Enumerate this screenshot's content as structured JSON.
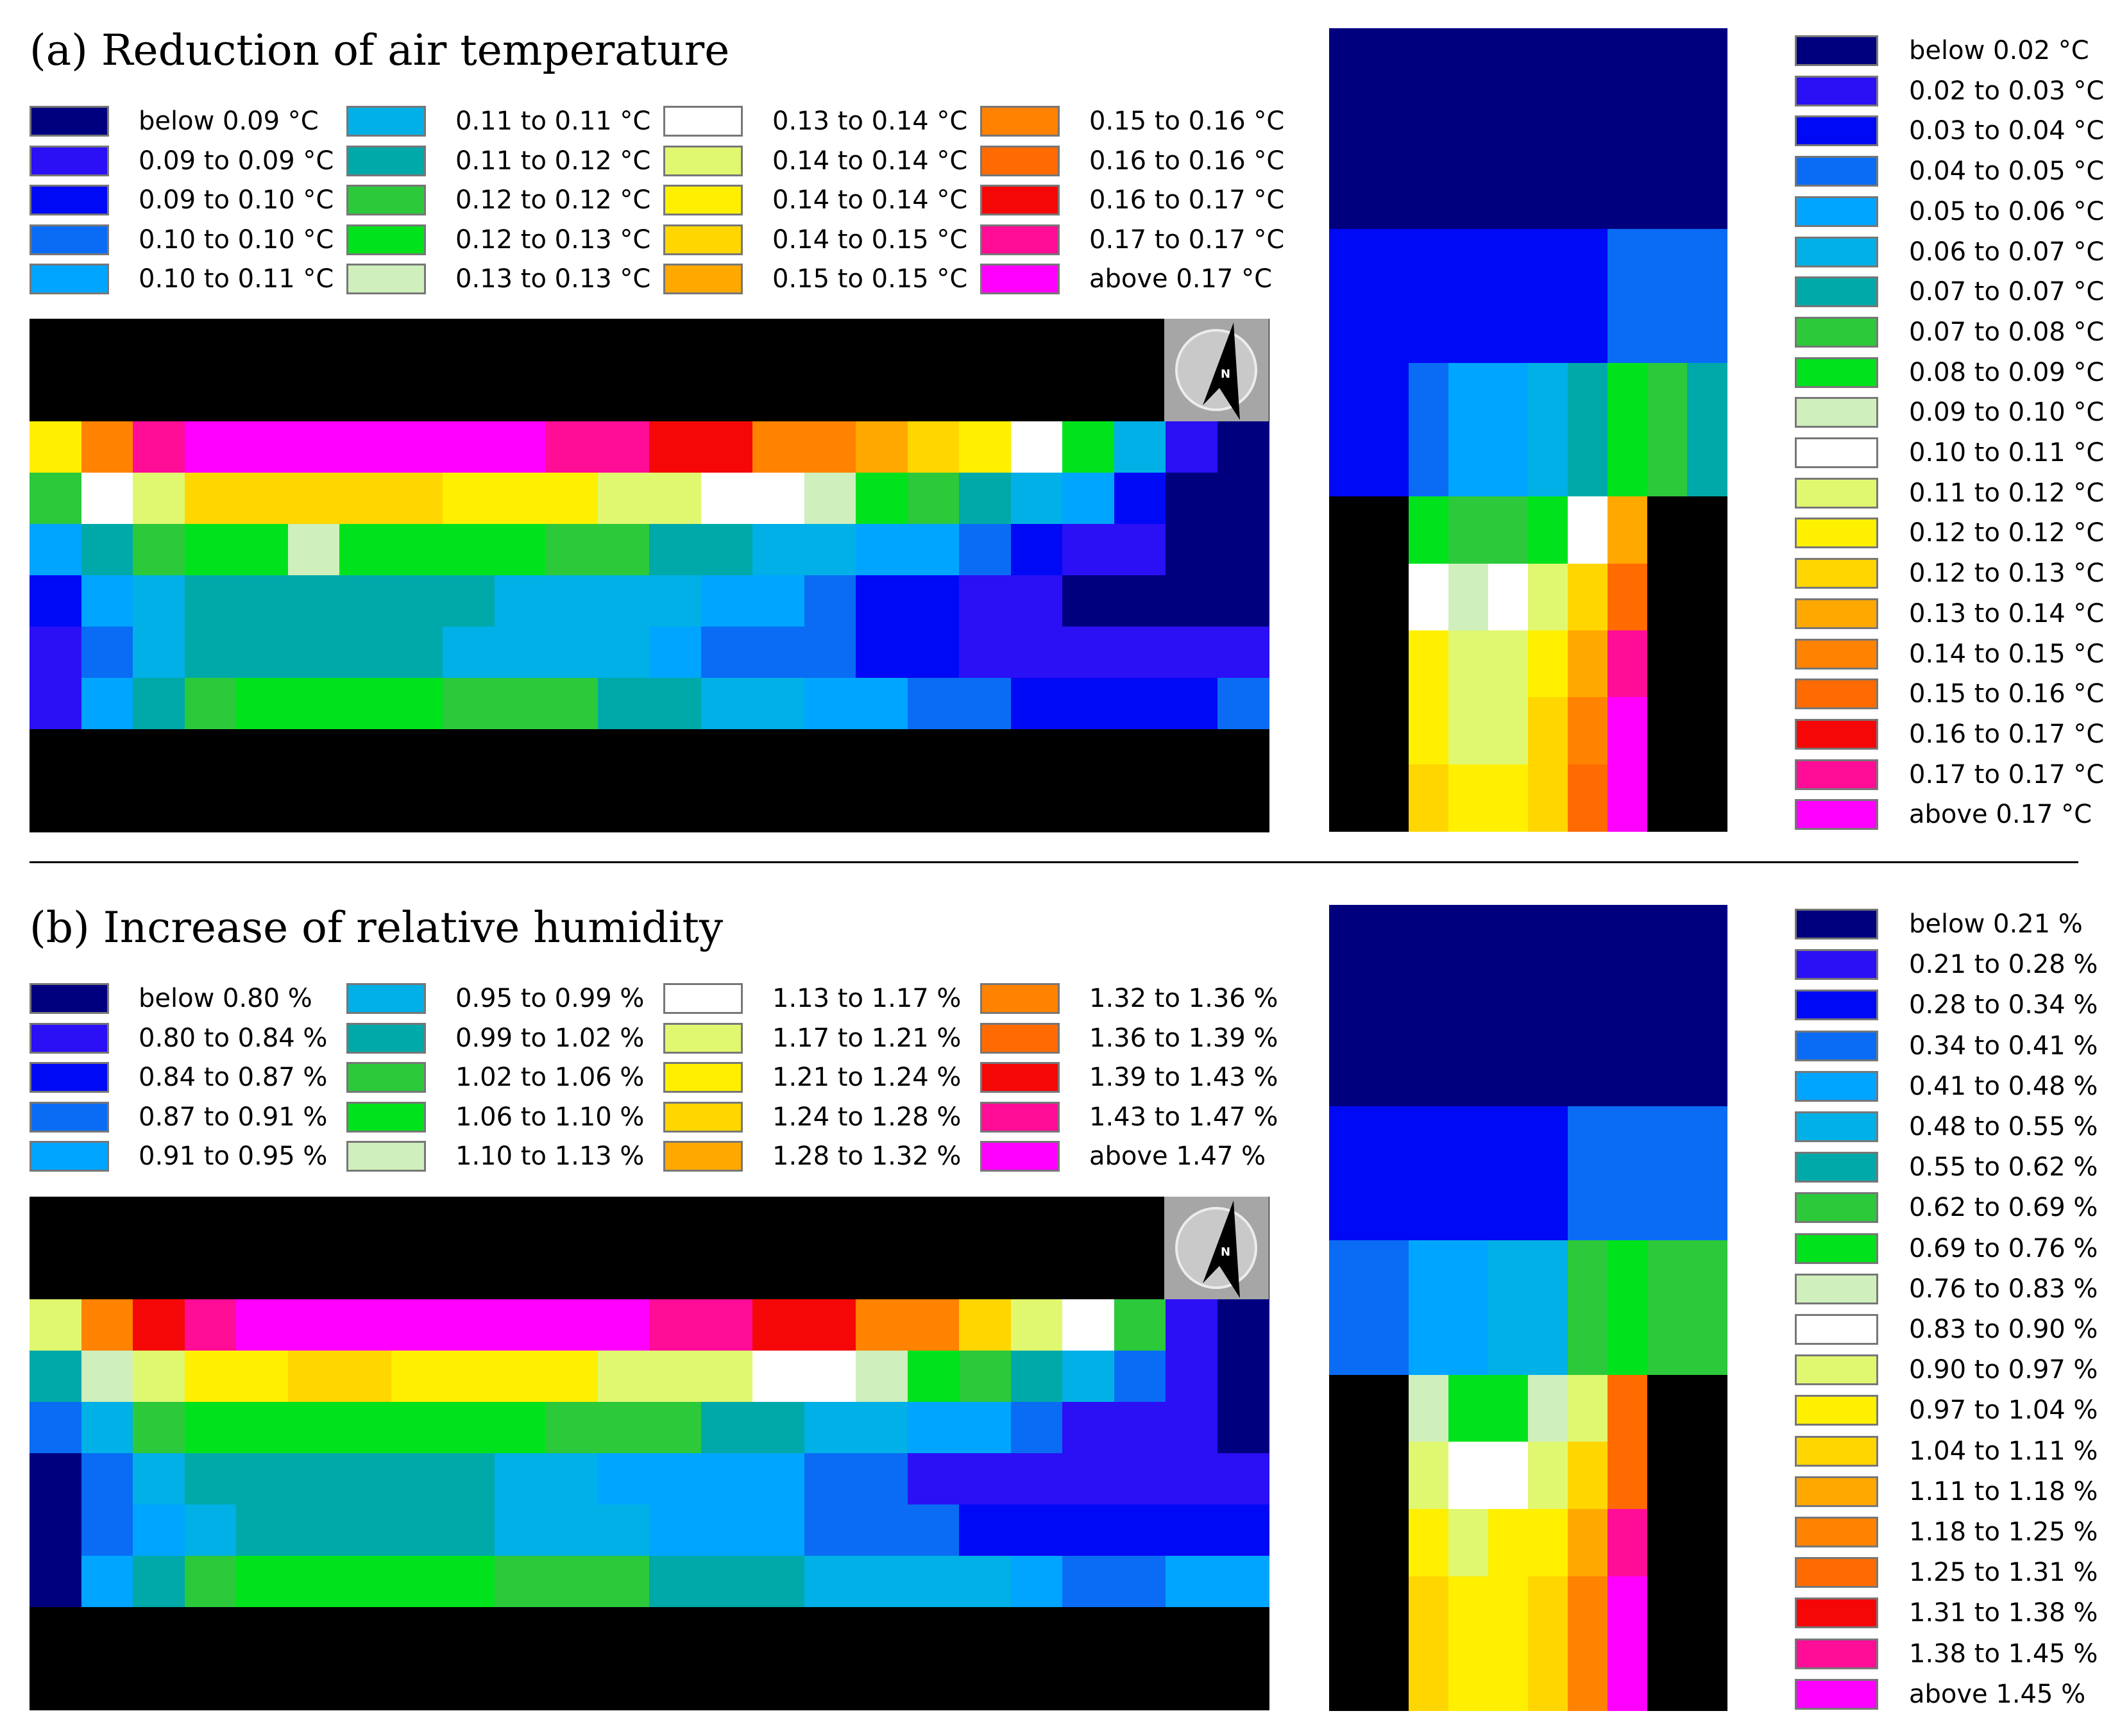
{
  "panel_a": {
    "title": "(a) Reduction of air temperature",
    "legend_main": [
      {
        "label": "below 0.09 °C",
        "color": "#00007f"
      },
      {
        "label": "0.09 to 0.09 °C",
        "color": "#2b0ff5"
      },
      {
        "label": "0.09 to 0.10 °C",
        "color": "#0009f5"
      },
      {
        "label": "0.10 to 0.10 °C",
        "color": "#0a6cf5"
      },
      {
        "label": "0.10 to 0.11 °C",
        "color": "#00a5ff"
      },
      {
        "label": "0.11 to 0.11 °C",
        "color": "#00b0e6"
      },
      {
        "label": "0.11 to 0.12 °C",
        "color": "#00a9a9"
      },
      {
        "label": "0.12 to 0.12 °C",
        "color": "#2cc93b"
      },
      {
        "label": "0.12 to 0.13 °C",
        "color": "#00e31c"
      },
      {
        "label": "0.13 to 0.13 °C",
        "color": "#cfefbc"
      },
      {
        "label": "0.13 to 0.14 °C",
        "color": "#ffffff"
      },
      {
        "label": "0.14 to 0.14 °C",
        "color": "#e0f870"
      },
      {
        "label": "0.14 to 0.14 °C",
        "color": "#fff000"
      },
      {
        "label": "0.14 to 0.15 °C",
        "color": "#ffd600"
      },
      {
        "label": "0.15 to 0.15 °C",
        "color": "#ffa800"
      },
      {
        "label": "0.15 to 0.16 °C",
        "color": "#ff8200"
      },
      {
        "label": "0.16 to 0.16 °C",
        "color": "#ff6b00"
      },
      {
        "label": "0.16 to 0.17 °C",
        "color": "#f50707"
      },
      {
        "label": "0.17 to 0.17 °C",
        "color": "#ff0c97"
      },
      {
        "label": "above 0.17 °C",
        "color": "#ff00ff"
      }
    ],
    "legend_side": [
      {
        "label": "below 0.02 °C",
        "color": "#00007f"
      },
      {
        "label": "0.02 to 0.03 °C",
        "color": "#2b0ff5"
      },
      {
        "label": "0.03 to 0.04 °C",
        "color": "#0009f5"
      },
      {
        "label": "0.04 to 0.05 °C",
        "color": "#0a6cf5"
      },
      {
        "label": "0.05 to 0.06 °C",
        "color": "#00a5ff"
      },
      {
        "label": "0.06 to 0.07 °C",
        "color": "#00b0e6"
      },
      {
        "label": "0.07 to 0.07 °C",
        "color": "#00a9a9"
      },
      {
        "label": "0.07 to 0.08 °C",
        "color": "#2cc93b"
      },
      {
        "label": "0.08 to 0.09 °C",
        "color": "#00e31c"
      },
      {
        "label": "0.09 to 0.10 °C",
        "color": "#cfefbc"
      },
      {
        "label": "0.10 to 0.11 °C",
        "color": "#ffffff"
      },
      {
        "label": "0.11 to 0.12 °C",
        "color": "#e0f870"
      },
      {
        "label": "0.12 to 0.12 °C",
        "color": "#fff000"
      },
      {
        "label": "0.12 to 0.13 °C",
        "color": "#ffd600"
      },
      {
        "label": "0.13 to 0.14 °C",
        "color": "#ffa800"
      },
      {
        "label": "0.14 to 0.15 °C",
        "color": "#ff8200"
      },
      {
        "label": "0.15 to 0.16 °C",
        "color": "#ff6b00"
      },
      {
        "label": "0.16 to 0.17 °C",
        "color": "#f50707"
      },
      {
        "label": "0.17 to 0.17 °C",
        "color": "#ff0c97"
      },
      {
        "label": "above 0.17 °C",
        "color": "#ff00ff"
      }
    ]
  },
  "panel_b": {
    "title": "(b) Increase of relative humidity",
    "legend_main": [
      {
        "label": "below 0.80 %",
        "color": "#00007f"
      },
      {
        "label": "0.80 to 0.84 %",
        "color": "#2b0ff5"
      },
      {
        "label": "0.84 to 0.87 %",
        "color": "#0009f5"
      },
      {
        "label": "0.87 to 0.91 %",
        "color": "#0a6cf5"
      },
      {
        "label": "0.91 to 0.95 %",
        "color": "#00a5ff"
      },
      {
        "label": "0.95 to 0.99 %",
        "color": "#00b0e6"
      },
      {
        "label": "0.99 to 1.02 %",
        "color": "#00a9a9"
      },
      {
        "label": "1.02 to 1.06 %",
        "color": "#2cc93b"
      },
      {
        "label": "1.06 to 1.10 %",
        "color": "#00e31c"
      },
      {
        "label": "1.10 to 1.13 %",
        "color": "#cfefbc"
      },
      {
        "label": "1.13 to 1.17 %",
        "color": "#ffffff"
      },
      {
        "label": "1.17 to 1.21 %",
        "color": "#e0f870"
      },
      {
        "label": "1.21 to 1.24 %",
        "color": "#fff000"
      },
      {
        "label": "1.24 to 1.28 %",
        "color": "#ffd600"
      },
      {
        "label": "1.28 to 1.32 %",
        "color": "#ffa800"
      },
      {
        "label": "1.32 to 1.36 %",
        "color": "#ff8200"
      },
      {
        "label": "1.36 to 1.39 %",
        "color": "#ff6b00"
      },
      {
        "label": "1.39 to 1.43 %",
        "color": "#f50707"
      },
      {
        "label": "1.43 to 1.47 %",
        "color": "#ff0c97"
      },
      {
        "label": "above 1.47 %",
        "color": "#ff00ff"
      }
    ],
    "legend_side": [
      {
        "label": "below 0.21 %",
        "color": "#00007f"
      },
      {
        "label": "0.21 to 0.28 %",
        "color": "#2b0ff5"
      },
      {
        "label": "0.28 to 0.34 %",
        "color": "#0009f5"
      },
      {
        "label": "0.34 to 0.41 %",
        "color": "#0a6cf5"
      },
      {
        "label": "0.41 to 0.48 %",
        "color": "#00a5ff"
      },
      {
        "label": "0.48 to 0.55 %",
        "color": "#00b0e6"
      },
      {
        "label": "0.55 to 0.62 %",
        "color": "#00a9a9"
      },
      {
        "label": "0.62 to 0.69 %",
        "color": "#2cc93b"
      },
      {
        "label": "0.69 to 0.76 %",
        "color": "#00e31c"
      },
      {
        "label": "0.76 to 0.83 %",
        "color": "#cfefbc"
      },
      {
        "label": "0.83 to 0.90 %",
        "color": "#ffffff"
      },
      {
        "label": "0.90 to 0.97 %",
        "color": "#e0f870"
      },
      {
        "label": "0.97 to 1.04 %",
        "color": "#fff000"
      },
      {
        "label": "1.04 to 1.11 %",
        "color": "#ffd600"
      },
      {
        "label": "1.11 to 1.18 %",
        "color": "#ffa800"
      },
      {
        "label": "1.18 to 1.25 %",
        "color": "#ff8200"
      },
      {
        "label": "1.25 to 1.31 %",
        "color": "#ff6b00"
      },
      {
        "label": "1.31 to 1.38 %",
        "color": "#f50707"
      },
      {
        "label": "1.38 to 1.45 %",
        "color": "#ff0c97"
      },
      {
        "label": "above 1.45 %",
        "color": "#ff00ff"
      }
    ]
  },
  "chart_data": [
    {
      "type": "heatmap",
      "title": "(a) Reduction of air temperature",
      "map": "street plan view",
      "note": "values are legend class indices 0-19 (0 = lowest class, 19 = highest class); -1 = background",
      "rows": [
        [
          -1,
          -1,
          -1,
          -1,
          -1,
          -1,
          -1,
          -1,
          -1,
          -1,
          -1,
          -1,
          -1,
          -1,
          -1,
          -1,
          -1,
          -1,
          -1,
          -1,
          -1,
          -1,
          -1,
          -1
        ],
        [
          -1,
          -1,
          -1,
          -1,
          -1,
          -1,
          -1,
          -1,
          -1,
          -1,
          -1,
          -1,
          -1,
          -1,
          -1,
          -1,
          -1,
          -1,
          -1,
          -1,
          -1,
          -1,
          -1,
          -1
        ],
        [
          12,
          15,
          18,
          19,
          19,
          19,
          19,
          19,
          19,
          19,
          18,
          18,
          17,
          17,
          15,
          15,
          14,
          13,
          12,
          10,
          8,
          5,
          1,
          0
        ],
        [
          7,
          10,
          11,
          13,
          13,
          13,
          13,
          13,
          12,
          12,
          12,
          11,
          11,
          10,
          10,
          9,
          8,
          7,
          6,
          5,
          4,
          2,
          0,
          0
        ],
        [
          4,
          6,
          7,
          8,
          8,
          9,
          8,
          8,
          8,
          8,
          7,
          7,
          6,
          6,
          5,
          5,
          4,
          4,
          3,
          2,
          1,
          1,
          0,
          0
        ],
        [
          2,
          4,
          5,
          6,
          6,
          6,
          6,
          6,
          6,
          5,
          5,
          5,
          5,
          4,
          4,
          3,
          2,
          2,
          1,
          1,
          0,
          0,
          0,
          0
        ],
        [
          1,
          3,
          5,
          6,
          6,
          6,
          6,
          6,
          5,
          5,
          5,
          5,
          4,
          3,
          3,
          3,
          2,
          2,
          1,
          1,
          1,
          1,
          1,
          1
        ],
        [
          1,
          4,
          6,
          7,
          8,
          8,
          8,
          8,
          7,
          7,
          7,
          6,
          6,
          5,
          5,
          4,
          4,
          3,
          3,
          2,
          2,
          2,
          2,
          3
        ],
        [
          -1,
          -1,
          -1,
          -1,
          -1,
          -1,
          -1,
          -1,
          -1,
          -1,
          -1,
          -1,
          -1,
          -1,
          -1,
          -1,
          -1,
          -1,
          -1,
          -1,
          -1,
          -1,
          -1,
          -1
        ],
        [
          -1,
          -1,
          -1,
          -1,
          -1,
          -1,
          -1,
          -1,
          -1,
          -1,
          -1,
          -1,
          -1,
          -1,
          -1,
          -1,
          -1,
          -1,
          -1,
          -1,
          -1,
          -1,
          -1,
          -1
        ]
      ]
    },
    {
      "type": "heatmap",
      "title": "(a) Reduction of air temperature — cross section",
      "note": "values are legend class indices 0-19; -1 = background",
      "rows": [
        [
          0,
          0,
          0,
          0,
          0,
          0,
          0,
          0,
          0,
          0
        ],
        [
          0,
          0,
          0,
          0,
          0,
          0,
          0,
          0,
          0,
          0
        ],
        [
          0,
          0,
          0,
          0,
          0,
          0,
          0,
          0,
          0,
          0
        ],
        [
          2,
          2,
          2,
          2,
          2,
          2,
          2,
          3,
          3,
          3
        ],
        [
          2,
          2,
          2,
          2,
          2,
          2,
          2,
          3,
          3,
          3
        ],
        [
          2,
          2,
          3,
          4,
          4,
          5,
          6,
          8,
          7,
          6
        ],
        [
          2,
          2,
          3,
          4,
          4,
          5,
          6,
          8,
          7,
          6
        ],
        [
          -1,
          -1,
          8,
          7,
          7,
          8,
          10,
          14,
          -1,
          -1
        ],
        [
          -1,
          -1,
          10,
          9,
          10,
          11,
          13,
          16,
          -1,
          -1
        ],
        [
          -1,
          -1,
          12,
          11,
          11,
          12,
          14,
          18,
          -1,
          -1
        ],
        [
          -1,
          -1,
          12,
          11,
          11,
          13,
          15,
          19,
          -1,
          -1
        ],
        [
          -1,
          -1,
          13,
          12,
          12,
          13,
          16,
          19,
          -1,
          -1
        ]
      ]
    },
    {
      "type": "heatmap",
      "title": "(b) Increase of relative humidity",
      "map": "street plan view",
      "note": "values are legend class indices 0-19; -1 = background",
      "rows": [
        [
          -1,
          -1,
          -1,
          -1,
          -1,
          -1,
          -1,
          -1,
          -1,
          -1,
          -1,
          -1,
          -1,
          -1,
          -1,
          -1,
          -1,
          -1,
          -1,
          -1,
          -1,
          -1,
          -1,
          -1
        ],
        [
          -1,
          -1,
          -1,
          -1,
          -1,
          -1,
          -1,
          -1,
          -1,
          -1,
          -1,
          -1,
          -1,
          -1,
          -1,
          -1,
          -1,
          -1,
          -1,
          -1,
          -1,
          -1,
          -1,
          -1
        ],
        [
          11,
          15,
          17,
          18,
          19,
          19,
          19,
          19,
          19,
          19,
          19,
          19,
          18,
          18,
          17,
          17,
          15,
          15,
          13,
          11,
          10,
          7,
          1,
          0
        ],
        [
          6,
          9,
          11,
          12,
          12,
          13,
          13,
          12,
          12,
          12,
          12,
          11,
          11,
          11,
          10,
          10,
          9,
          8,
          7,
          6,
          5,
          3,
          1,
          0
        ],
        [
          3,
          5,
          7,
          8,
          8,
          8,
          8,
          8,
          8,
          8,
          7,
          7,
          7,
          6,
          6,
          5,
          5,
          4,
          4,
          3,
          1,
          1,
          1,
          0
        ],
        [
          0,
          3,
          5,
          6,
          6,
          6,
          6,
          6,
          6,
          5,
          5,
          4,
          4,
          4,
          4,
          3,
          3,
          1,
          1,
          1,
          1,
          1,
          1,
          1
        ],
        [
          0,
          3,
          4,
          5,
          6,
          6,
          6,
          6,
          6,
          5,
          5,
          5,
          4,
          4,
          4,
          3,
          3,
          3,
          2,
          2,
          2,
          2,
          2,
          2
        ],
        [
          0,
          4,
          6,
          7,
          8,
          8,
          8,
          8,
          8,
          7,
          7,
          7,
          6,
          6,
          6,
          5,
          5,
          5,
          5,
          4,
          3,
          3,
          4,
          4
        ],
        [
          -1,
          -1,
          -1,
          -1,
          -1,
          -1,
          -1,
          -1,
          -1,
          -1,
          -1,
          -1,
          -1,
          -1,
          -1,
          -1,
          -1,
          -1,
          -1,
          -1,
          -1,
          -1,
          -1,
          -1
        ],
        [
          -1,
          -1,
          -1,
          -1,
          -1,
          -1,
          -1,
          -1,
          -1,
          -1,
          -1,
          -1,
          -1,
          -1,
          -1,
          -1,
          -1,
          -1,
          -1,
          -1,
          -1,
          -1,
          -1,
          -1
        ]
      ]
    },
    {
      "type": "heatmap",
      "title": "(b) Increase of relative humidity — cross section",
      "note": "values are legend class indices 0-19; -1 = background",
      "rows": [
        [
          0,
          0,
          0,
          0,
          0,
          0,
          0,
          0,
          0,
          0
        ],
        [
          0,
          0,
          0,
          0,
          0,
          0,
          0,
          0,
          0,
          0
        ],
        [
          0,
          0,
          0,
          0,
          0,
          0,
          0,
          0,
          0,
          0
        ],
        [
          2,
          2,
          2,
          2,
          2,
          2,
          3,
          3,
          3,
          3
        ],
        [
          2,
          2,
          2,
          2,
          2,
          2,
          3,
          3,
          3,
          3
        ],
        [
          3,
          3,
          4,
          4,
          5,
          5,
          7,
          8,
          7,
          7
        ],
        [
          3,
          3,
          4,
          4,
          5,
          5,
          7,
          8,
          7,
          7
        ],
        [
          -1,
          -1,
          9,
          8,
          8,
          9,
          11,
          16,
          -1,
          -1
        ],
        [
          -1,
          -1,
          11,
          10,
          10,
          11,
          13,
          16,
          -1,
          -1
        ],
        [
          -1,
          -1,
          12,
          11,
          12,
          12,
          14,
          18,
          -1,
          -1
        ],
        [
          -1,
          -1,
          13,
          12,
          12,
          13,
          15,
          19,
          -1,
          -1
        ],
        [
          -1,
          -1,
          13,
          12,
          12,
          13,
          15,
          19,
          -1,
          -1
        ]
      ]
    }
  ],
  "palette": [
    "#00007f",
    "#2b0ff5",
    "#0009f5",
    "#0a6cf5",
    "#00a5ff",
    "#00b0e6",
    "#00a9a9",
    "#2cc93b",
    "#00e31c",
    "#cfefbc",
    "#ffffff",
    "#e0f870",
    "#fff000",
    "#ffd600",
    "#ffa800",
    "#ff8200",
    "#ff6b00",
    "#f50707",
    "#ff0c97",
    "#ff00ff"
  ],
  "background_color": "#000000",
  "compass": {
    "letter": "N"
  }
}
